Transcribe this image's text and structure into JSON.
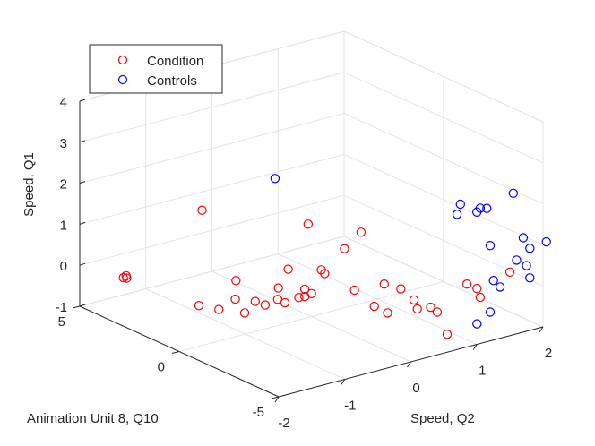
{
  "chart_data": {
    "type": "scatter3d",
    "title": "",
    "xlabel": "Speed, Q2",
    "ylabel": "Animation Unit 8, Q10",
    "zlabel": "Speed, Q1",
    "xlim": [
      -2,
      2
    ],
    "ylim": [
      -5,
      5
    ],
    "zlim": [
      -1,
      4
    ],
    "xticks": [
      -2,
      -1,
      0,
      1,
      2
    ],
    "yticks": [
      -5,
      0,
      5
    ],
    "zticks": [
      -1,
      0,
      1,
      2,
      3,
      4
    ],
    "grid": true,
    "legend_location": "top-left",
    "marker": "open circle",
    "series": [
      {
        "name": "Condition",
        "color": "#ff0000",
        "points": [
          {
            "x": -0.3,
            "y": 4.5,
            "z": 0.73
          },
          {
            "x": -1.55,
            "y": 4.3,
            "z": -0.34
          },
          {
            "x": -1.5,
            "y": 4.3,
            "z": -0.37
          },
          {
            "x": -1.45,
            "y": 4.5,
            "z": -0.38
          },
          {
            "x": -1.25,
            "y": 1.5,
            "z": -0.53
          },
          {
            "x": -1.1,
            "y": 1.0,
            "z": -0.58
          },
          {
            "x": -1.0,
            "y": 0.5,
            "z": -0.26
          },
          {
            "x": -0.95,
            "y": 0.2,
            "z": -0.55
          },
          {
            "x": -0.85,
            "y": 0.0,
            "z": -0.27
          },
          {
            "x": -0.75,
            "y": 1.3,
            "z": -0.09
          },
          {
            "x": -0.7,
            "y": 0.0,
            "z": -0.42
          },
          {
            "x": -0.6,
            "y": -0.3,
            "z": -0.26
          },
          {
            "x": -0.55,
            "y": -0.5,
            "z": -0.32
          },
          {
            "x": -0.5,
            "y": 0.0,
            "z": -0.09
          },
          {
            "x": -0.4,
            "y": -1.0,
            "z": -0.12
          },
          {
            "x": -0.4,
            "y": -0.7,
            "z": -0.21
          },
          {
            "x": -0.3,
            "y": -1.0,
            "z": -0.09
          },
          {
            "x": -0.2,
            "y": 0.5,
            "z": 0.13
          },
          {
            "x": 0.0,
            "y": -0.5,
            "z": 0.25
          },
          {
            "x": 0.05,
            "y": -0.5,
            "z": 0.14
          },
          {
            "x": -0.1,
            "y": 0.0,
            "z": -0.29
          },
          {
            "x": 0.2,
            "y": -1.5,
            "z": -0.11
          },
          {
            "x": 0.35,
            "y": -2.0,
            "z": -0.46
          },
          {
            "x": 0.4,
            "y": -2.5,
            "z": -0.53
          },
          {
            "x": 0.5,
            "y": -2.0,
            "z": 0.02
          },
          {
            "x": 0.6,
            "y": -2.5,
            "z": -0.03
          },
          {
            "x": 0.65,
            "y": -3.0,
            "z": -0.21
          },
          {
            "x": 0.75,
            "y": -3.5,
            "z": -0.32
          },
          {
            "x": 0.7,
            "y": -3.0,
            "z": -0.45
          },
          {
            "x": 0.85,
            "y": -3.5,
            "z": -0.48
          },
          {
            "x": 0.1,
            "y": 0.5,
            "z": 1.1
          },
          {
            "x": 0.3,
            "y": -1.5,
            "z": 1.26
          },
          {
            "x": 0.2,
            "y": -1.0,
            "z": 0.79
          },
          {
            "x": 1.0,
            "y": -5.0,
            "z": 0.36
          },
          {
            "x": 1.0,
            "y": -4.5,
            "z": 0.36
          },
          {
            "x": 1.2,
            "y": -4.5,
            "z": -0.05
          },
          {
            "x": 0.85,
            "y": -4.0,
            "z": -0.91
          },
          {
            "x": 1.5,
            "y": -5.0,
            "z": 0.55
          }
        ]
      },
      {
        "name": "Controls",
        "color": "#0000ff",
        "points": [
          {
            "x": -0.55,
            "y": 0.0,
            "z": 2.6
          },
          {
            "x": 0.9,
            "y": -4.5,
            "z": 2.35
          },
          {
            "x": 1.0,
            "y": -4.0,
            "z": 1.95
          },
          {
            "x": 1.05,
            "y": -5.0,
            "z": 2.3
          },
          {
            "x": 1.15,
            "y": -5.0,
            "z": 2.25
          },
          {
            "x": 1.15,
            "y": -4.5,
            "z": 2.05
          },
          {
            "x": 1.35,
            "y": -4.5,
            "z": 1.15
          },
          {
            "x": 1.55,
            "y": -5.0,
            "z": 2.45
          },
          {
            "x": 1.7,
            "y": -5.0,
            "z": 1.3
          },
          {
            "x": 1.8,
            "y": -5.0,
            "z": 1.0
          },
          {
            "x": 2.05,
            "y": -5.0,
            "z": 1.05
          },
          {
            "x": 1.8,
            "y": -5.0,
            "z": 0.28
          },
          {
            "x": 1.25,
            "y": -5.0,
            "z": 0.45
          },
          {
            "x": 1.75,
            "y": -5.0,
            "z": 0.6
          },
          {
            "x": 1.6,
            "y": -5.0,
            "z": 0.8
          },
          {
            "x": 1.0,
            "y": -5.0,
            "z": -0.5
          },
          {
            "x": 1.2,
            "y": -5.0,
            "z": -0.3
          },
          {
            "x": 1.35,
            "y": -5.0,
            "z": 0.25
          }
        ]
      }
    ]
  }
}
